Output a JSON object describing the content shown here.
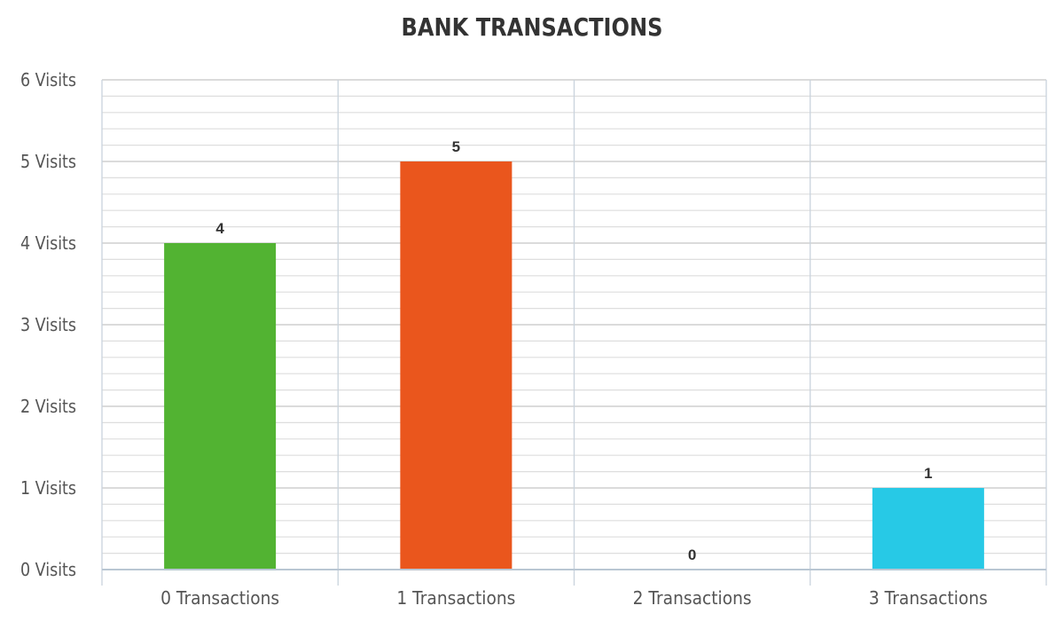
{
  "chart_data": {
    "type": "bar",
    "title": "BANK TRANSACTIONS",
    "categories": [
      "0 Transactions",
      "1 Transactions",
      "2 Transactions",
      "3 Transactions"
    ],
    "values": [
      4,
      5,
      0,
      1
    ],
    "colors": [
      "#52b332",
      "#ea561d",
      "#7f7f7f",
      "#27c9e6"
    ],
    "data_labels": [
      "4",
      "5",
      "0",
      "1"
    ],
    "y_tick_labels": [
      "0 Visits",
      "1 Visits",
      "2 Visits",
      "3 Visits",
      "4 Visits",
      "5 Visits",
      "6 Visits"
    ],
    "ylim": [
      0,
      6
    ],
    "minor_grid_step": 0.2,
    "grid": true,
    "legend": "none"
  }
}
